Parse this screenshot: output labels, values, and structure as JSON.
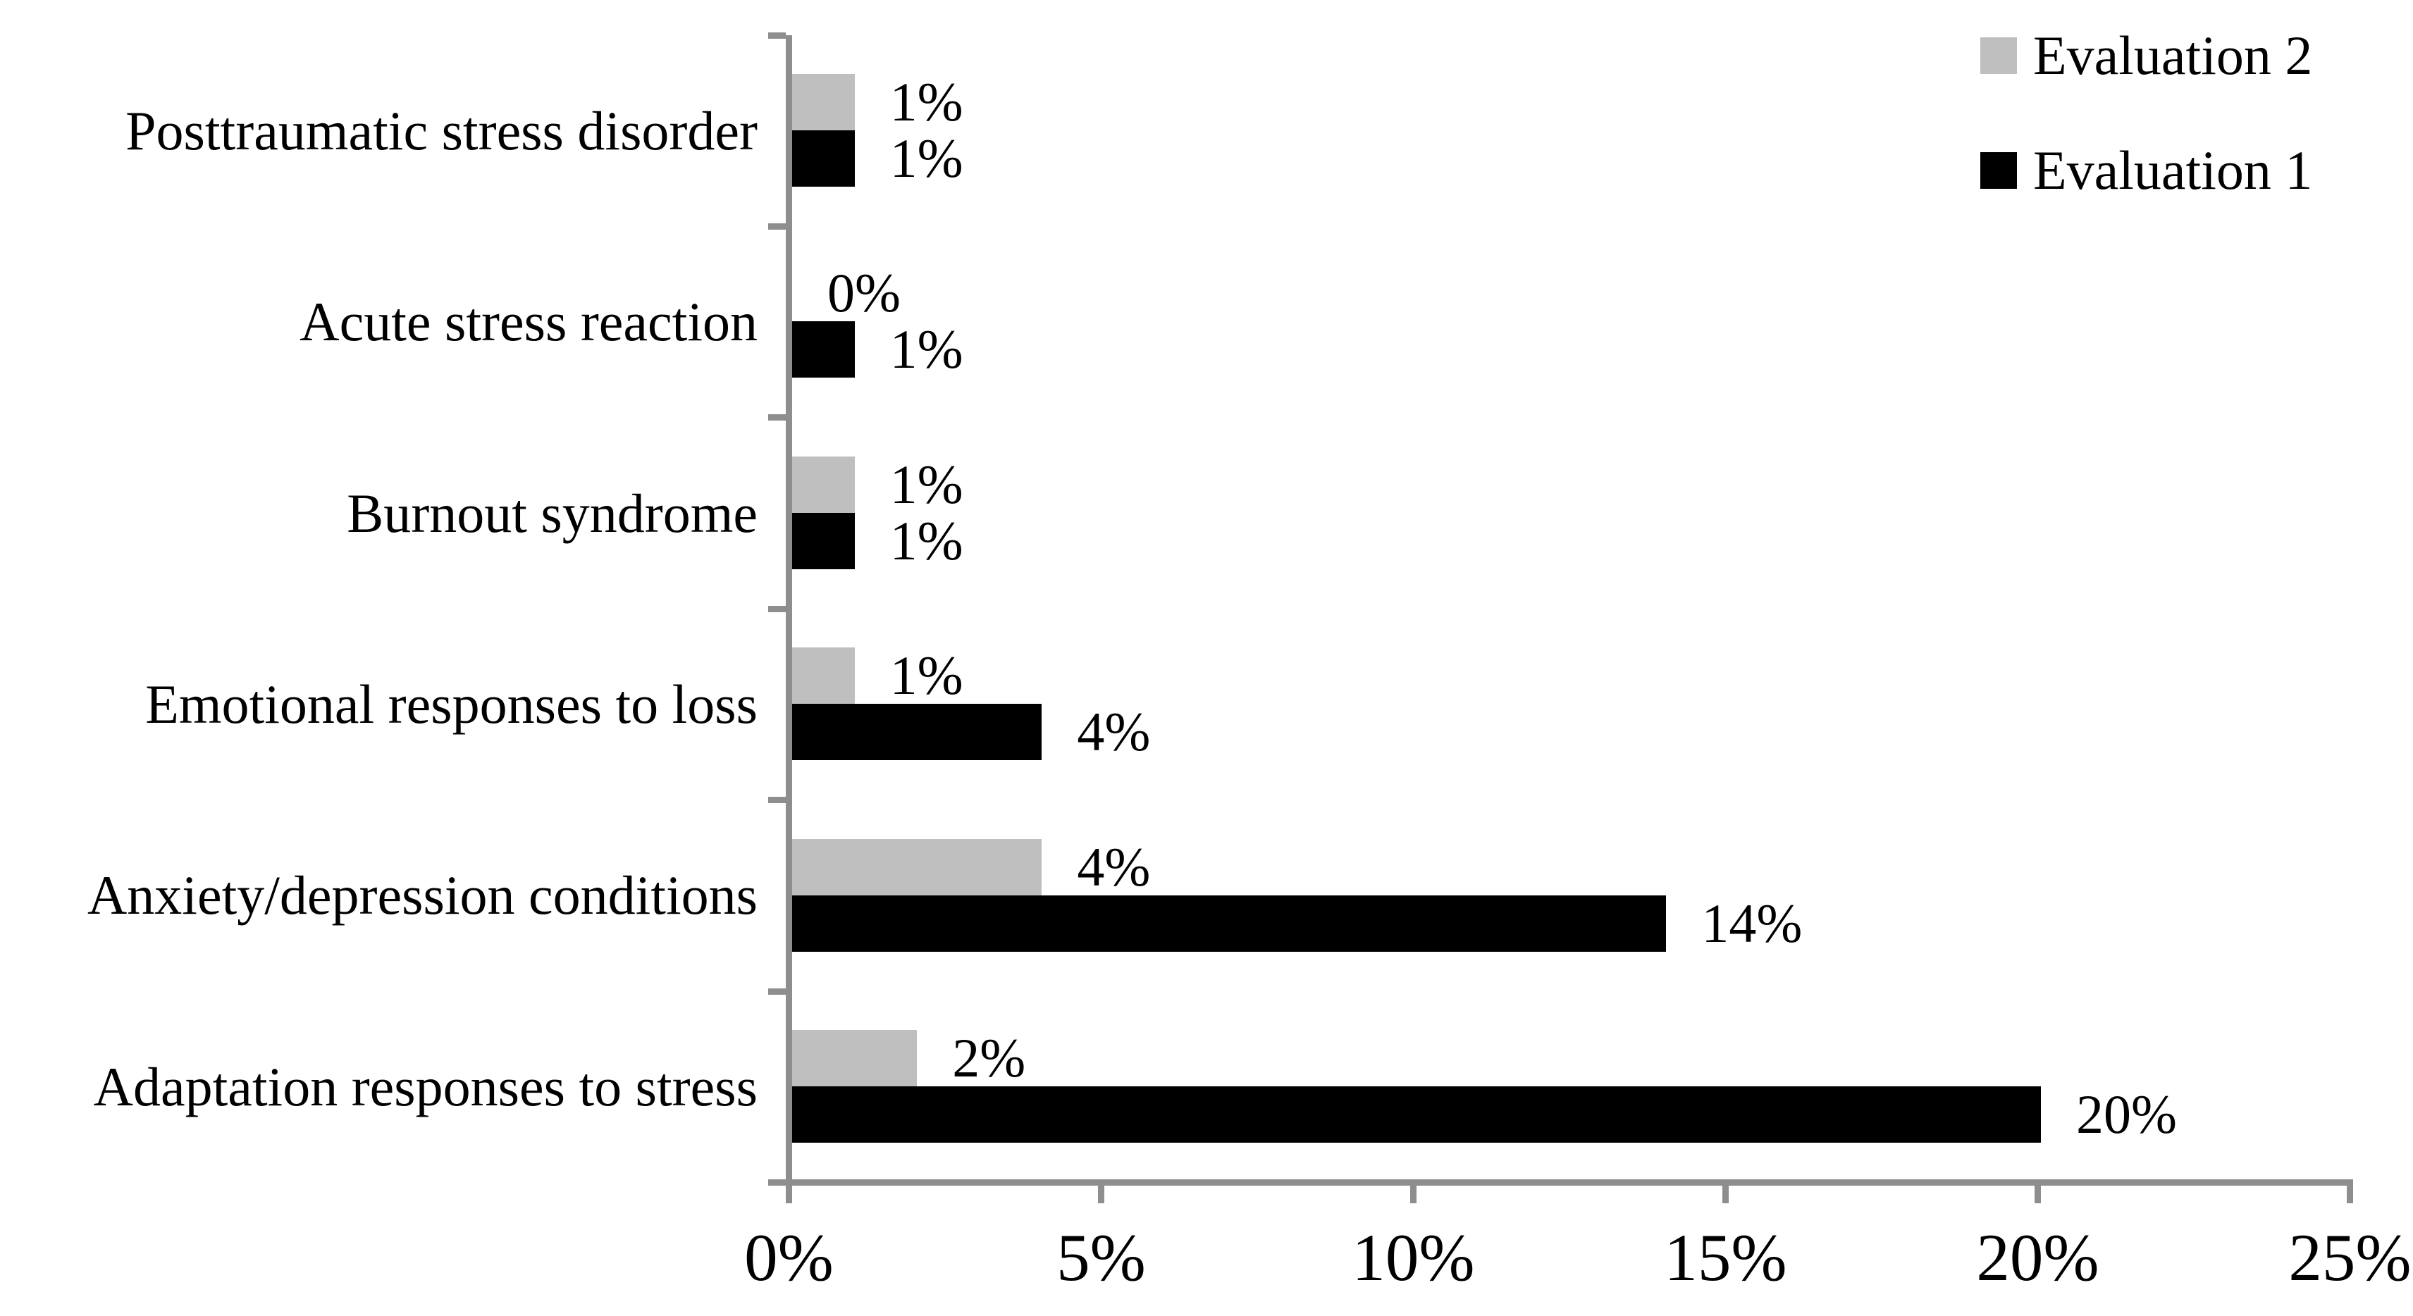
{
  "chart_data": {
    "type": "bar",
    "orientation": "horizontal",
    "categories": [
      "Posttraumatic stress disorder",
      "Acute stress reaction",
      "Burnout syndrome",
      "Emotional responses to loss",
      "Anxiety/depression conditions",
      "Adaptation responses to stress"
    ],
    "series": [
      {
        "name": "Evaluation 2",
        "color": "#bfbfbf",
        "values": [
          1,
          0,
          1,
          1,
          4,
          2
        ],
        "value_labels": [
          "1%",
          "0%",
          "1%",
          "1%",
          "4%",
          "2%"
        ]
      },
      {
        "name": "Evaluation 1",
        "color": "#000000",
        "values": [
          1,
          1,
          1,
          4,
          14,
          20
        ],
        "value_labels": [
          "1%",
          "1%",
          "1%",
          "4%",
          "14%",
          "20%"
        ]
      }
    ],
    "x_axis": {
      "tick_labels": [
        "0%",
        "5%",
        "10%",
        "15%",
        "20%",
        "25%"
      ],
      "tick_values": [
        0,
        5,
        10,
        15,
        20,
        25
      ],
      "min": 0,
      "max": 25
    },
    "legend": {
      "position": "top-right",
      "items": [
        {
          "label": "Evaluation 2",
          "color": "#bfbfbf"
        },
        {
          "label": "Evaluation 1",
          "color": "#000000"
        }
      ]
    },
    "colors": {
      "axis": "#8e8e8e",
      "background": "#ffffff",
      "text": "#000000"
    },
    "grid": false
  }
}
